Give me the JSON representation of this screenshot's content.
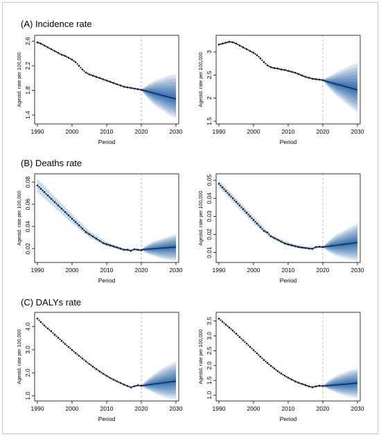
{
  "sections": [
    {
      "title": "(A) Incidence rate"
    },
    {
      "title": "(B) Deaths rate"
    },
    {
      "title": "(C) DALYs rate"
    }
  ],
  "colors": {
    "observed_points": "#0b0b2a",
    "projection_median": "#08306b",
    "fan_band": "#08519c",
    "uncertainty_band_hist": "#9ecae1",
    "divider_line": "#a6a6a6"
  },
  "chart_data": [
    {
      "type": "line",
      "section": 0,
      "xlabel": "Period",
      "ylabel": "Agestd. rate per 100,000",
      "xlim": [
        1990,
        2030
      ],
      "ylim": [
        1.3,
        2.65
      ],
      "xticks": [
        1990,
        2000,
        2010,
        2020,
        2030
      ],
      "yticks": [
        1.4,
        1.8,
        2.2,
        2.6
      ],
      "divider_x": 2020,
      "observed": {
        "x": [
          1990,
          1991,
          1992,
          1993,
          1994,
          1995,
          1996,
          1997,
          1998,
          1999,
          2000,
          2001,
          2002,
          2003,
          2004,
          2005,
          2006,
          2007,
          2008,
          2009,
          2010,
          2011,
          2012,
          2013,
          2014,
          2015,
          2016,
          2017,
          2018,
          2019,
          2020
        ],
        "y": [
          2.58,
          2.56,
          2.53,
          2.5,
          2.47,
          2.44,
          2.41,
          2.38,
          2.36,
          2.33,
          2.3,
          2.26,
          2.2,
          2.14,
          2.09,
          2.06,
          2.04,
          2.02,
          2.0,
          1.98,
          1.96,
          1.94,
          1.92,
          1.9,
          1.88,
          1.86,
          1.85,
          1.84,
          1.83,
          1.82,
          1.81
        ]
      },
      "projection": {
        "x": [
          2020,
          2022,
          2024,
          2026,
          2028,
          2030
        ],
        "median": [
          1.81,
          1.78,
          1.75,
          1.72,
          1.69,
          1.66
        ],
        "lower": [
          1.8,
          1.66,
          1.55,
          1.48,
          1.4,
          1.35
        ],
        "upper": [
          1.82,
          1.9,
          1.96,
          2.0,
          2.04,
          2.06
        ]
      }
    },
    {
      "type": "line",
      "section": 0,
      "xlabel": "Period",
      "ylabel": "Agestd. rate per 100,000",
      "xlim": [
        1990,
        2030
      ],
      "ylim": [
        1.5,
        3.3
      ],
      "xticks": [
        1990,
        2000,
        2010,
        2020,
        2030
      ],
      "yticks": [
        1.5,
        2.0,
        2.5,
        3.0
      ],
      "divider_x": 2020,
      "observed": {
        "x": [
          1990,
          1991,
          1992,
          1993,
          1994,
          1995,
          1996,
          1997,
          1998,
          1999,
          2000,
          2001,
          2002,
          2003,
          2004,
          2005,
          2006,
          2007,
          2008,
          2009,
          2010,
          2011,
          2012,
          2013,
          2014,
          2015,
          2016,
          2017,
          2018,
          2019,
          2020
        ],
        "y": [
          3.16,
          3.18,
          3.2,
          3.22,
          3.21,
          3.18,
          3.14,
          3.1,
          3.06,
          3.02,
          2.98,
          2.93,
          2.86,
          2.78,
          2.71,
          2.67,
          2.65,
          2.64,
          2.62,
          2.61,
          2.59,
          2.57,
          2.55,
          2.52,
          2.49,
          2.46,
          2.44,
          2.42,
          2.41,
          2.4,
          2.39
        ]
      },
      "projection": {
        "x": [
          2020,
          2022,
          2024,
          2026,
          2028,
          2030
        ],
        "median": [
          2.39,
          2.34,
          2.3,
          2.26,
          2.22,
          2.18
        ],
        "lower": [
          2.38,
          2.2,
          2.05,
          1.93,
          1.8,
          1.7
        ],
        "upper": [
          2.4,
          2.48,
          2.56,
          2.63,
          2.7,
          2.76
        ]
      }
    },
    {
      "type": "line",
      "section": 1,
      "xlabel": "Period",
      "ylabel": "Agestd. rate per 100,000",
      "xlim": [
        1990,
        2030
      ],
      "ylim": [
        0.01,
        0.085
      ],
      "xticks": [
        1990,
        2000,
        2010,
        2020,
        2030
      ],
      "yticks": [
        0.02,
        0.04,
        0.06,
        0.08
      ],
      "divider_x": 2020,
      "observed": {
        "x": [
          1990,
          1991,
          1992,
          1993,
          1994,
          1995,
          1996,
          1997,
          1998,
          1999,
          2000,
          2001,
          2002,
          2003,
          2004,
          2005,
          2006,
          2007,
          2008,
          2009,
          2010,
          2011,
          2012,
          2013,
          2014,
          2015,
          2016,
          2017,
          2018,
          2019,
          2020
        ],
        "y": [
          0.077,
          0.074,
          0.071,
          0.068,
          0.065,
          0.062,
          0.059,
          0.056,
          0.053,
          0.05,
          0.047,
          0.044,
          0.041,
          0.038,
          0.035,
          0.033,
          0.031,
          0.029,
          0.027,
          0.025,
          0.024,
          0.023,
          0.022,
          0.021,
          0.02,
          0.019,
          0.019,
          0.018,
          0.0195,
          0.019,
          0.0185
        ]
      },
      "history_band": {
        "x": [
          1990,
          1995,
          2000,
          2005,
          2010,
          2015,
          2020
        ],
        "lower": [
          0.071,
          0.057,
          0.043,
          0.03,
          0.022,
          0.018,
          0.0175
        ],
        "upper": [
          0.083,
          0.067,
          0.051,
          0.036,
          0.026,
          0.02,
          0.0195
        ]
      },
      "projection": {
        "x": [
          2020,
          2022,
          2024,
          2026,
          2028,
          2030
        ],
        "median": [
          0.019,
          0.0195,
          0.02,
          0.0205,
          0.021,
          0.0215
        ],
        "lower": [
          0.0185,
          0.015,
          0.013,
          0.011,
          0.01,
          0.009
        ],
        "upper": [
          0.0195,
          0.024,
          0.027,
          0.029,
          0.031,
          0.033
        ]
      }
    },
    {
      "type": "line",
      "section": 1,
      "xlabel": "Period",
      "ylabel": "Agestd. rate per 100,000",
      "xlim": [
        1990,
        2030
      ],
      "ylim": [
        0.006,
        0.052
      ],
      "xticks": [
        1990,
        2000,
        2010,
        2020,
        2030
      ],
      "yticks": [
        0.01,
        0.02,
        0.03,
        0.04,
        0.05
      ],
      "divider_x": 2020,
      "observed": {
        "x": [
          1990,
          1991,
          1992,
          1993,
          1994,
          1995,
          1996,
          1997,
          1998,
          1999,
          2000,
          2001,
          2002,
          2003,
          2004,
          2005,
          2006,
          2007,
          2008,
          2009,
          2010,
          2011,
          2012,
          2013,
          2014,
          2015,
          2016,
          2017,
          2018,
          2019,
          2020
        ],
        "y": [
          0.048,
          0.046,
          0.044,
          0.042,
          0.04,
          0.038,
          0.036,
          0.034,
          0.032,
          0.03,
          0.028,
          0.026,
          0.024,
          0.022,
          0.021,
          0.019,
          0.018,
          0.017,
          0.016,
          0.015,
          0.0145,
          0.014,
          0.0135,
          0.013,
          0.0127,
          0.0125,
          0.0122,
          0.012,
          0.013,
          0.0132,
          0.013
        ]
      },
      "history_band": {
        "x": [
          1990,
          1995,
          2000,
          2005,
          2010,
          2015,
          2020
        ],
        "lower": [
          0.046,
          0.036,
          0.026,
          0.018,
          0.0135,
          0.0118,
          0.0125
        ],
        "upper": [
          0.05,
          0.04,
          0.03,
          0.02,
          0.0155,
          0.0132,
          0.0135
        ]
      },
      "projection": {
        "x": [
          2020,
          2022,
          2024,
          2026,
          2028,
          2030
        ],
        "median": [
          0.013,
          0.0135,
          0.014,
          0.0145,
          0.015,
          0.0155
        ],
        "lower": [
          0.0128,
          0.01,
          0.008,
          0.007,
          0.006,
          0.0055
        ],
        "upper": [
          0.0132,
          0.017,
          0.02,
          0.022,
          0.024,
          0.026
        ]
      }
    },
    {
      "type": "line",
      "section": 2,
      "xlabel": "Period",
      "ylabel": "Agestd. rate per 100,000",
      "xlim": [
        1990,
        2030
      ],
      "ylim": [
        0.9,
        4.5
      ],
      "xticks": [
        1990,
        2000,
        2010,
        2020,
        2030
      ],
      "yticks": [
        1.0,
        2.0,
        3.0,
        4.0
      ],
      "yticklabels": [
        "1.0",
        "2.0",
        "3.0",
        "4.0"
      ],
      "divider_x": 2020,
      "observed": {
        "x": [
          1990,
          1991,
          1992,
          1993,
          1994,
          1995,
          1996,
          1997,
          1998,
          1999,
          2000,
          2001,
          2002,
          2003,
          2004,
          2005,
          2006,
          2007,
          2008,
          2009,
          2010,
          2011,
          2012,
          2013,
          2014,
          2015,
          2016,
          2017,
          2018,
          2019,
          2020
        ],
        "y": [
          4.35,
          4.2,
          4.05,
          3.92,
          3.8,
          3.65,
          3.52,
          3.38,
          3.25,
          3.12,
          2.99,
          2.86,
          2.74,
          2.62,
          2.5,
          2.38,
          2.27,
          2.16,
          2.06,
          1.96,
          1.87,
          1.78,
          1.7,
          1.63,
          1.56,
          1.49,
          1.43,
          1.37,
          1.42,
          1.46,
          1.44
        ]
      },
      "projection": {
        "x": [
          2020,
          2022,
          2024,
          2026,
          2028,
          2030
        ],
        "median": [
          1.44,
          1.48,
          1.52,
          1.56,
          1.6,
          1.64
        ],
        "lower": [
          1.42,
          1.25,
          1.1,
          0.98,
          0.9,
          0.88
        ],
        "upper": [
          1.46,
          1.75,
          1.98,
          2.18,
          2.34,
          2.48
        ]
      }
    },
    {
      "type": "line",
      "section": 2,
      "xlabel": "Period",
      "ylabel": "Agestd. rate per 100,000",
      "xlim": [
        1990,
        2030
      ],
      "ylim": [
        0.9,
        3.7
      ],
      "xticks": [
        1990,
        2000,
        2010,
        2020,
        2030
      ],
      "yticks": [
        1.0,
        1.5,
        2.0,
        2.5,
        3.0,
        3.5
      ],
      "yticklabels": [
        "1.0",
        "1.5",
        "2.0",
        "2.5",
        "3.0",
        "3.5"
      ],
      "divider_x": 2020,
      "observed": {
        "x": [
          1990,
          1991,
          1992,
          1993,
          1994,
          1995,
          1996,
          1997,
          1998,
          1999,
          2000,
          2001,
          2002,
          2003,
          2004,
          2005,
          2006,
          2007,
          2008,
          2009,
          2010,
          2011,
          2012,
          2013,
          2014,
          2015,
          2016,
          2017,
          2018,
          2019,
          2020
        ],
        "y": [
          3.58,
          3.48,
          3.38,
          3.28,
          3.18,
          3.07,
          2.96,
          2.85,
          2.74,
          2.63,
          2.52,
          2.41,
          2.3,
          2.19,
          2.09,
          1.99,
          1.9,
          1.81,
          1.73,
          1.66,
          1.59,
          1.53,
          1.47,
          1.42,
          1.38,
          1.34,
          1.3,
          1.27,
          1.3,
          1.32,
          1.31
        ]
      },
      "projection": {
        "x": [
          2020,
          2022,
          2024,
          2026,
          2028,
          2030
        ],
        "median": [
          1.31,
          1.33,
          1.35,
          1.37,
          1.39,
          1.41
        ],
        "lower": [
          1.3,
          1.18,
          1.08,
          1.0,
          0.95,
          0.92
        ],
        "upper": [
          1.32,
          1.52,
          1.66,
          1.76,
          1.84,
          1.9
        ]
      }
    }
  ]
}
